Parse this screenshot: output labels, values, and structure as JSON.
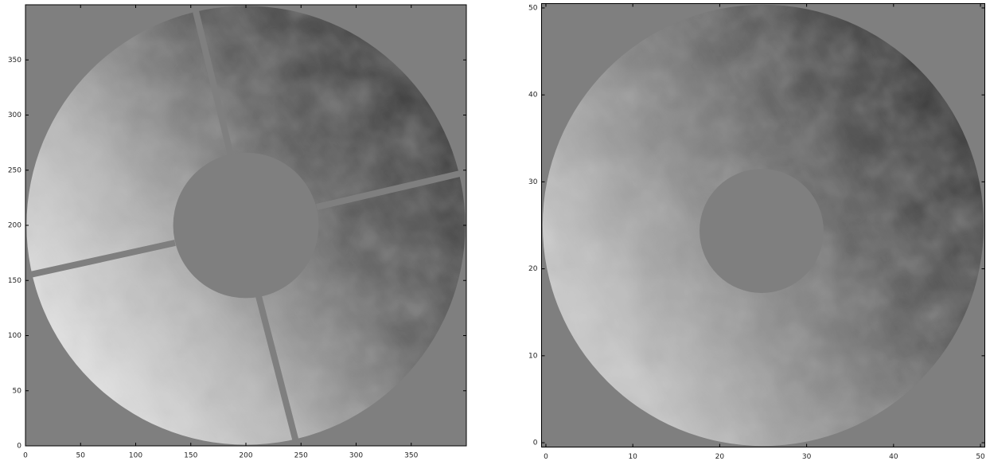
{
  "chart_data": [
    {
      "type": "image",
      "xlim": [
        0,
        400
      ],
      "ylim": [
        0,
        400
      ],
      "xticks": [
        0,
        50,
        100,
        150,
        200,
        250,
        300,
        350
      ],
      "yticks": [
        0,
        50,
        100,
        150,
        200,
        250,
        300,
        350
      ]
    },
    {
      "type": "image",
      "xlim": [
        -0.5,
        50.5
      ],
      "ylim": [
        -0.5,
        50.5
      ],
      "xticks": [
        0,
        10,
        20,
        30,
        40,
        50
      ],
      "yticks": [
        0,
        10,
        20,
        30,
        40,
        50
      ]
    }
  ]
}
